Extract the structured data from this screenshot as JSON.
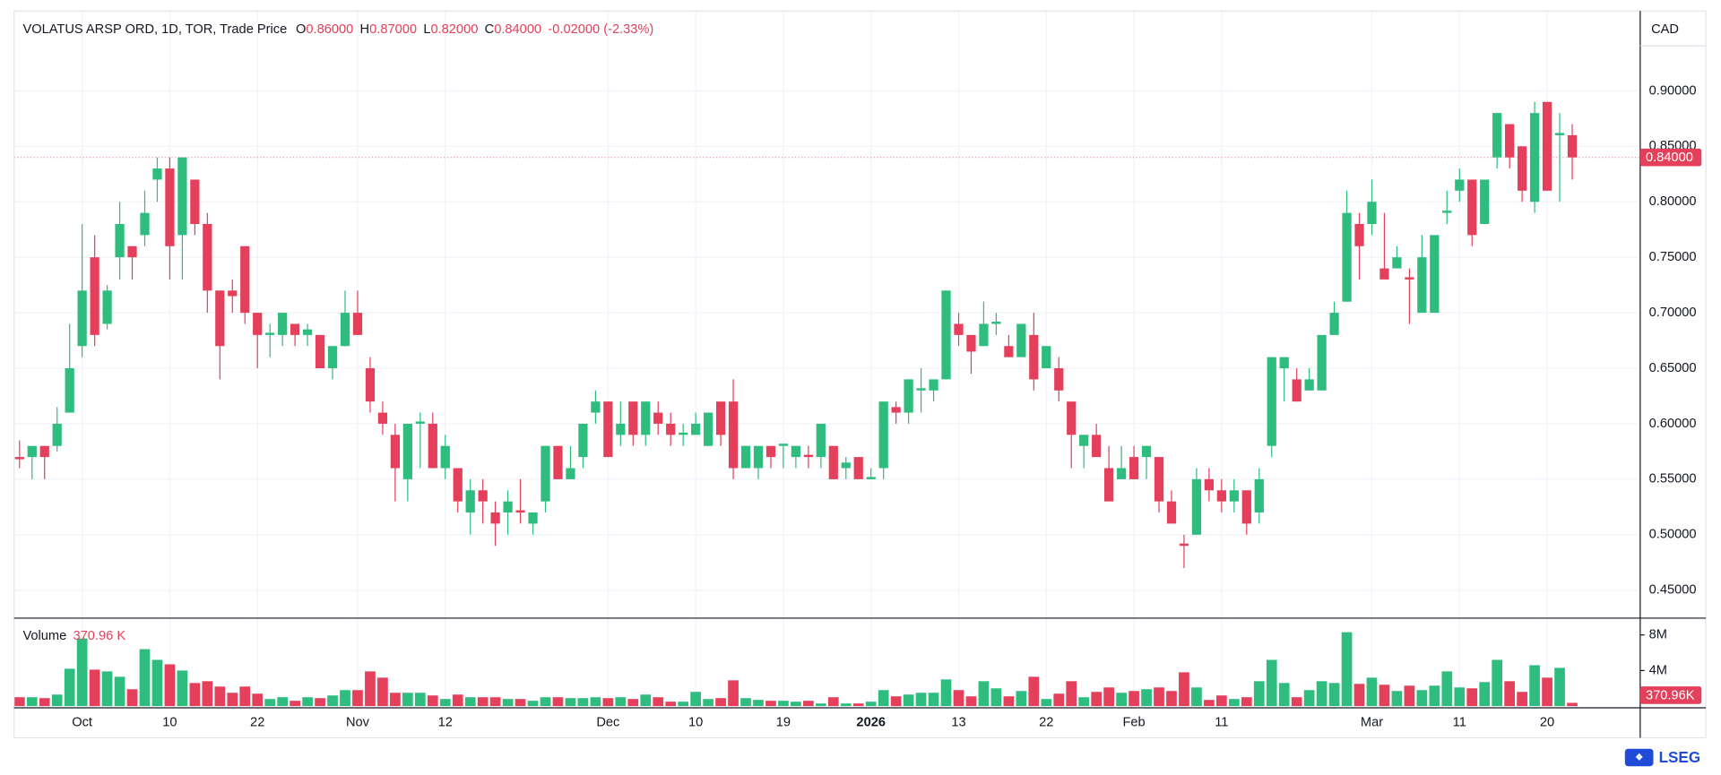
{
  "chart_data": [
    {
      "type": "candlestick",
      "title": "VOLATUS ARSP ORD, 1D, TOR, Trade Price",
      "ohlc_legend": [
        {
          "key": "O",
          "value": 0.86,
          "label": "0.86000"
        },
        {
          "key": "H",
          "value": 0.87,
          "label": "0.87000"
        },
        {
          "key": "L",
          "value": 0.82,
          "label": "0.82000"
        },
        {
          "key": "C",
          "value": 0.84,
          "label": "0.84000"
        }
      ],
      "change": {
        "value": -0.02,
        "label": "-0.02000 (-2.33%)"
      },
      "currency": "CAD",
      "last_price": {
        "value": 0.84,
        "label": "0.84000"
      },
      "up_color": "#2ebd7f",
      "down_color": "#e5405b",
      "categories": [
        null,
        null,
        null,
        null,
        null,
        "Oct",
        null,
        null,
        null,
        null,
        null,
        null,
        "10",
        null,
        null,
        null,
        null,
        null,
        null,
        "22",
        null,
        null,
        null,
        null,
        null,
        null,
        null,
        "Nov",
        null,
        null,
        null,
        null,
        null,
        null,
        "12",
        null,
        null,
        null,
        null,
        null,
        null,
        null,
        null,
        null,
        null,
        null,
        null,
        "Dec",
        null,
        null,
        null,
        null,
        null,
        null,
        "10",
        null,
        null,
        null,
        null,
        null,
        null,
        "19",
        null,
        null,
        null,
        null,
        null,
        null,
        "2026",
        null,
        null,
        null,
        null,
        null,
        null,
        "13",
        null,
        null,
        null,
        null,
        null,
        null,
        "22",
        null,
        null,
        null,
        null,
        null,
        null,
        "Feb",
        null,
        null,
        null,
        null,
        null,
        null,
        "11",
        null,
        null,
        null,
        null,
        null,
        null,
        null,
        null,
        null,
        null,
        null,
        "Mar",
        null,
        null,
        null,
        null,
        null,
        null,
        "11",
        null,
        null,
        null,
        null,
        null,
        null,
        "20",
        null,
        null
      ],
      "open": [
        0.57,
        0.57,
        0.58,
        0.58,
        0.61,
        0.67,
        0.75,
        0.69,
        0.75,
        0.76,
        0.77,
        0.82,
        0.83,
        0.77,
        0.82,
        0.78,
        0.72,
        0.72,
        0.76,
        0.7,
        0.68,
        0.68,
        0.69,
        0.68,
        0.68,
        0.65,
        0.67,
        0.7,
        0.65,
        0.61,
        0.59,
        0.55,
        0.6,
        0.6,
        0.56,
        0.56,
        0.52,
        0.54,
        0.52,
        0.52,
        0.522,
        0.51,
        0.53,
        0.58,
        0.55,
        0.57,
        0.61,
        0.62,
        0.59,
        0.62,
        0.59,
        0.61,
        0.6,
        0.59,
        0.59,
        0.58,
        0.62,
        0.62,
        0.56,
        0.56,
        0.58,
        0.58,
        0.57,
        0.572,
        0.57,
        0.58,
        0.56,
        0.57,
        0.55,
        0.56,
        0.615,
        0.61,
        0.63,
        0.63,
        0.64,
        0.69,
        0.68,
        0.67,
        0.69,
        0.67,
        0.66,
        0.68,
        0.65,
        0.65,
        0.62,
        0.58,
        0.59,
        0.56,
        0.55,
        0.57,
        0.57,
        0.57,
        0.53,
        0.492,
        0.5,
        0.55,
        0.54,
        0.53,
        0.54,
        0.52,
        0.58,
        0.65,
        0.64,
        0.63,
        0.63,
        0.68,
        0.71,
        0.78,
        0.78,
        0.74,
        0.74,
        0.732,
        0.7,
        0.7,
        0.79,
        0.81,
        0.82,
        0.78,
        0.84,
        0.87,
        0.85,
        0.8,
        0.89,
        0.86,
        0.86
      ],
      "high": [
        0.585,
        0.58,
        0.58,
        0.615,
        0.69,
        0.78,
        0.77,
        0.725,
        0.8,
        0.76,
        0.81,
        0.84,
        0.84,
        0.84,
        0.82,
        0.79,
        0.72,
        0.73,
        0.76,
        0.7,
        0.69,
        0.7,
        0.69,
        0.69,
        0.68,
        0.67,
        0.72,
        0.72,
        0.66,
        0.62,
        0.6,
        0.6,
        0.61,
        0.61,
        0.59,
        0.56,
        0.55,
        0.55,
        0.53,
        0.54,
        0.55,
        0.52,
        0.58,
        0.58,
        0.58,
        0.6,
        0.63,
        0.62,
        0.62,
        0.62,
        0.62,
        0.62,
        0.61,
        0.6,
        0.61,
        0.61,
        0.62,
        0.64,
        0.58,
        0.58,
        0.58,
        0.58,
        0.58,
        0.58,
        0.6,
        0.58,
        0.57,
        0.57,
        0.56,
        0.62,
        0.62,
        0.64,
        0.65,
        0.64,
        0.72,
        0.7,
        0.68,
        0.71,
        0.7,
        0.68,
        0.69,
        0.7,
        0.67,
        0.66,
        0.62,
        0.59,
        0.6,
        0.58,
        0.58,
        0.58,
        0.58,
        0.57,
        0.54,
        0.5,
        0.56,
        0.56,
        0.55,
        0.55,
        0.54,
        0.56,
        0.66,
        0.66,
        0.65,
        0.65,
        0.68,
        0.71,
        0.81,
        0.79,
        0.82,
        0.79,
        0.76,
        0.74,
        0.77,
        0.77,
        0.81,
        0.83,
        0.82,
        0.82,
        0.88,
        0.87,
        0.85,
        0.89,
        0.89,
        0.88,
        0.87
      ],
      "low": [
        0.56,
        0.55,
        0.55,
        0.575,
        0.61,
        0.66,
        0.67,
        0.685,
        0.73,
        0.73,
        0.76,
        0.8,
        0.73,
        0.73,
        0.77,
        0.7,
        0.64,
        0.7,
        0.69,
        0.65,
        0.66,
        0.67,
        0.67,
        0.67,
        0.65,
        0.64,
        0.67,
        0.68,
        0.61,
        0.59,
        0.53,
        0.53,
        0.56,
        0.56,
        0.55,
        0.52,
        0.5,
        0.51,
        0.49,
        0.5,
        0.51,
        0.5,
        0.52,
        0.55,
        0.55,
        0.56,
        0.6,
        0.57,
        0.58,
        0.58,
        0.58,
        0.59,
        0.58,
        0.58,
        0.59,
        0.58,
        0.58,
        0.55,
        0.56,
        0.55,
        0.56,
        0.56,
        0.56,
        0.56,
        0.56,
        0.55,
        0.55,
        0.55,
        0.55,
        0.55,
        0.6,
        0.6,
        0.61,
        0.62,
        0.64,
        0.67,
        0.645,
        0.67,
        0.68,
        0.66,
        0.66,
        0.63,
        0.65,
        0.62,
        0.56,
        0.56,
        0.57,
        0.53,
        0.55,
        0.55,
        0.55,
        0.52,
        0.51,
        0.47,
        0.5,
        0.53,
        0.52,
        0.52,
        0.5,
        0.51,
        0.57,
        0.62,
        0.62,
        0.63,
        0.63,
        0.68,
        0.71,
        0.73,
        0.77,
        0.73,
        0.74,
        0.69,
        0.7,
        0.7,
        0.78,
        0.8,
        0.76,
        0.78,
        0.83,
        0.83,
        0.8,
        0.79,
        0.81,
        0.8,
        0.82
      ],
      "close": [
        0.568,
        0.58,
        0.57,
        0.6,
        0.65,
        0.72,
        0.68,
        0.72,
        0.78,
        0.75,
        0.79,
        0.83,
        0.76,
        0.84,
        0.78,
        0.72,
        0.67,
        0.715,
        0.7,
        0.68,
        0.682,
        0.7,
        0.68,
        0.685,
        0.65,
        0.67,
        0.7,
        0.68,
        0.62,
        0.6,
        0.56,
        0.6,
        0.602,
        0.56,
        0.58,
        0.53,
        0.54,
        0.53,
        0.51,
        0.53,
        0.52,
        0.52,
        0.58,
        0.55,
        0.56,
        0.6,
        0.62,
        0.57,
        0.6,
        0.59,
        0.62,
        0.6,
        0.59,
        0.592,
        0.6,
        0.61,
        0.59,
        0.56,
        0.58,
        0.58,
        0.57,
        0.582,
        0.58,
        0.57,
        0.6,
        0.55,
        0.565,
        0.55,
        0.552,
        0.62,
        0.61,
        0.64,
        0.632,
        0.64,
        0.72,
        0.68,
        0.665,
        0.69,
        0.692,
        0.66,
        0.69,
        0.64,
        0.67,
        0.63,
        0.59,
        0.59,
        0.57,
        0.53,
        0.56,
        0.55,
        0.58,
        0.53,
        0.51,
        0.49,
        0.55,
        0.54,
        0.53,
        0.54,
        0.51,
        0.55,
        0.66,
        0.66,
        0.62,
        0.64,
        0.68,
        0.7,
        0.79,
        0.76,
        0.8,
        0.73,
        0.75,
        0.73,
        0.75,
        0.77,
        0.792,
        0.82,
        0.77,
        0.82,
        0.88,
        0.84,
        0.81,
        0.88,
        0.81,
        0.862,
        0.84
      ],
      "ylim": [
        0.4253,
        0.972
      ],
      "yticks": [
        {
          "value": 0.45,
          "label": "0.45000"
        },
        {
          "value": 0.5,
          "label": "0.50000"
        },
        {
          "value": 0.55,
          "label": "0.55000"
        },
        {
          "value": 0.6,
          "label": "0.60000"
        },
        {
          "value": 0.65,
          "label": "0.65000"
        },
        {
          "value": 0.7,
          "label": "0.70000"
        },
        {
          "value": 0.75,
          "label": "0.75000"
        },
        {
          "value": 0.8,
          "label": "0.80000"
        },
        {
          "value": 0.85,
          "label": "0.85000"
        },
        {
          "value": 0.9,
          "label": "0.90000"
        }
      ],
      "grid": true
    },
    {
      "type": "volume",
      "title": "Volume",
      "legend_value": {
        "value": 370960,
        "label": "370.96 K"
      },
      "last_value": {
        "value": 370960,
        "label": "370.96K"
      },
      "values": [
        1000000,
        1000000,
        900000,
        1300000,
        4200000,
        7600000,
        4100000,
        3900000,
        3300000,
        1900000,
        6400000,
        5200000,
        4700000,
        4000000,
        2600000,
        2800000,
        2200000,
        1500000,
        2200000,
        1400000,
        800000,
        1000000,
        600000,
        1000000,
        900000,
        1200000,
        1800000,
        1800000,
        3900000,
        3200000,
        1500000,
        1500000,
        1500000,
        1200000,
        800000,
        1300000,
        1000000,
        1000000,
        1000000,
        800000,
        800000,
        600000,
        1000000,
        1000000,
        900000,
        900000,
        1000000,
        900000,
        1000000,
        800000,
        1300000,
        1000000,
        500000,
        500000,
        1600000,
        800000,
        900000,
        2900000,
        900000,
        700000,
        600000,
        600000,
        500000,
        600000,
        300000,
        1000000,
        300000,
        300000,
        500000,
        1800000,
        1100000,
        1300000,
        1500000,
        1500000,
        3000000,
        1800000,
        1100000,
        2800000,
        2000000,
        1100000,
        1700000,
        3300000,
        800000,
        1400000,
        2800000,
        1000000,
        1600000,
        2100000,
        1500000,
        1700000,
        1900000,
        2100000,
        1700000,
        3800000,
        2100000,
        700000,
        1200000,
        800000,
        1000000,
        2800000,
        5200000,
        2600000,
        1000000,
        1800000,
        2800000,
        2600000,
        8300000,
        2500000,
        3200000,
        2400000,
        1700000,
        2300000,
        1800000,
        2300000,
        3900000,
        2100000,
        2000000,
        2700000,
        5200000,
        2800000,
        1600000,
        4600000,
        3200000,
        4300000,
        370960
      ],
      "ylim": [
        0,
        9700000
      ],
      "yticks": [
        {
          "value": 4000000,
          "label": "4M"
        },
        {
          "value": 8000000,
          "label": "8M"
        }
      ]
    },
    {
      "type": "brand",
      "logo": "LSEG"
    }
  ]
}
